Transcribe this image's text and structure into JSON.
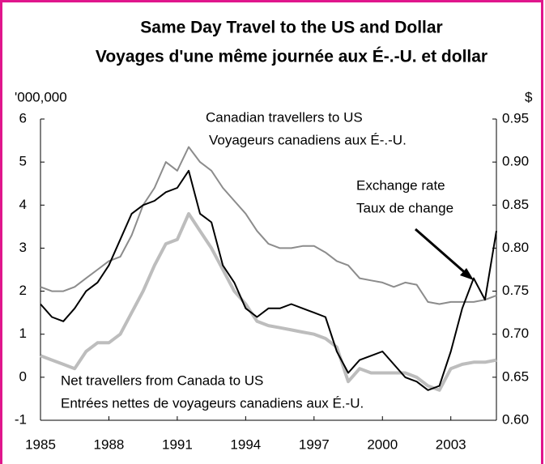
{
  "chart_data": {
    "type": "line",
    "title": "Same Day Travel to the US and Dollar",
    "subtitle": "Voyages d'une même journée aux É-.-U. et dollar",
    "y_label": "'000,000",
    "y2_label": "$",
    "annotations": [
      "Canadian travellers to US",
      "Voyageurs canadiens aux É-.-U.",
      "Exchange rate",
      "Taux de change",
      "Net travellers from Canada to US",
      "Entrées nettes de voyageurs canadiens aux É.-U."
    ],
    "x": [
      1985,
      1985.5,
      1986,
      1986.5,
      1987,
      1987.5,
      1988,
      1988.5,
      1989,
      1989.5,
      1990,
      1990.5,
      1991,
      1991.5,
      1992,
      1992.5,
      1993,
      1993.5,
      1994,
      1994.5,
      1995,
      1995.5,
      1996,
      1996.5,
      1997,
      1997.5,
      1998,
      1998.5,
      1999,
      1999.5,
      2000,
      2000.5,
      2001,
      2001.5,
      2002,
      2002.5,
      2003,
      2003.5,
      2004,
      2004.5,
      2005
    ],
    "series": [
      {
        "name": "Canadian travellers to US",
        "color": "#8c8c8c",
        "width": 2,
        "values": [
          2.1,
          2.0,
          2.0,
          2.1,
          2.3,
          2.5,
          2.7,
          2.8,
          3.3,
          4.0,
          4.4,
          5.0,
          4.8,
          5.35,
          5.0,
          4.8,
          4.4,
          4.1,
          3.8,
          3.4,
          3.1,
          3.0,
          3.0,
          3.05,
          3.05,
          2.9,
          2.7,
          2.6,
          2.3,
          2.25,
          2.2,
          2.1,
          2.2,
          2.15,
          1.75,
          1.7,
          1.75,
          1.75,
          1.75,
          1.8,
          1.9
        ]
      },
      {
        "name": "Net travellers from Canada to US",
        "color": "#bdbdbd",
        "width": 4,
        "values": [
          0.5,
          0.4,
          0.3,
          0.2,
          0.6,
          0.8,
          0.8,
          1.0,
          1.5,
          2.0,
          2.6,
          3.1,
          3.2,
          3.8,
          3.4,
          3.0,
          2.5,
          2.0,
          1.7,
          1.3,
          1.2,
          1.15,
          1.1,
          1.05,
          1.0,
          0.9,
          0.7,
          -0.1,
          0.2,
          0.1,
          0.1,
          0.1,
          0.1,
          0.0,
          -0.2,
          -0.3,
          0.2,
          0.3,
          0.35,
          0.35,
          0.4
        ]
      },
      {
        "name": "Exchange rate",
        "color": "#000000",
        "width": 2,
        "axis": "y2",
        "values": [
          0.735,
          0.72,
          0.715,
          0.73,
          0.75,
          0.76,
          0.78,
          0.81,
          0.84,
          0.85,
          0.855,
          0.865,
          0.87,
          0.89,
          0.84,
          0.83,
          0.78,
          0.76,
          0.73,
          0.72,
          0.73,
          0.73,
          0.735,
          0.73,
          0.725,
          0.72,
          0.68,
          0.655,
          0.67,
          0.675,
          0.68,
          0.665,
          0.65,
          0.645,
          0.635,
          0.64,
          0.68,
          0.73,
          0.765,
          0.74,
          0.82
        ]
      }
    ],
    "xlim": [
      1985,
      2005
    ],
    "xticks": [
      1985,
      1988,
      1991,
      1994,
      1997,
      2000,
      2003
    ],
    "ylim": [
      -1,
      6
    ],
    "yticks": [
      -1,
      0,
      1,
      2,
      3,
      4,
      5,
      6
    ],
    "y2lim": [
      0.6,
      0.95
    ],
    "y2ticks": [
      {
        "value": 0.6,
        "label": "0.60"
      },
      0.65,
      {
        "value": 0.7,
        "label": "0.70"
      },
      0.75,
      {
        "value": 0.8,
        "label": "0.80"
      },
      0.85,
      {
        "value": 0.9,
        "label": "0.90"
      },
      0.95
    ]
  }
}
